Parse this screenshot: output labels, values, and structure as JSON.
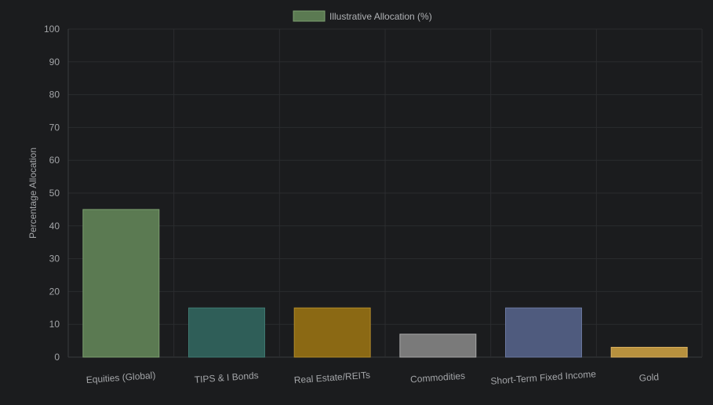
{
  "chart_data": {
    "type": "bar",
    "title": "",
    "xlabel": "",
    "ylabel": "Percentage Allocation",
    "ylim": [
      0,
      100
    ],
    "yticks": [
      0,
      10,
      20,
      30,
      40,
      50,
      60,
      70,
      80,
      90,
      100
    ],
    "grid": true,
    "legend_position": "top-center",
    "categories": [
      "Equities (Global)",
      "TIPS & I Bonds",
      "Real Estate/REITs",
      "Commodities",
      "Short-Term Fixed Income",
      "Gold"
    ],
    "series": [
      {
        "name": "Illustrative Allocation (%)",
        "values": [
          45,
          15,
          15,
          7,
          15,
          3
        ],
        "legend_color": "#5b7a52",
        "colors": [
          "#5b7a52",
          "#2f5e58",
          "#8b6914",
          "#7a7a7a",
          "#4f5b7e",
          "#b8913e"
        ],
        "border_colors": [
          "#7da070",
          "#3f7a72",
          "#b08a2a",
          "#a8a8a8",
          "#6b78a0",
          "#d9b060"
        ]
      }
    ]
  }
}
